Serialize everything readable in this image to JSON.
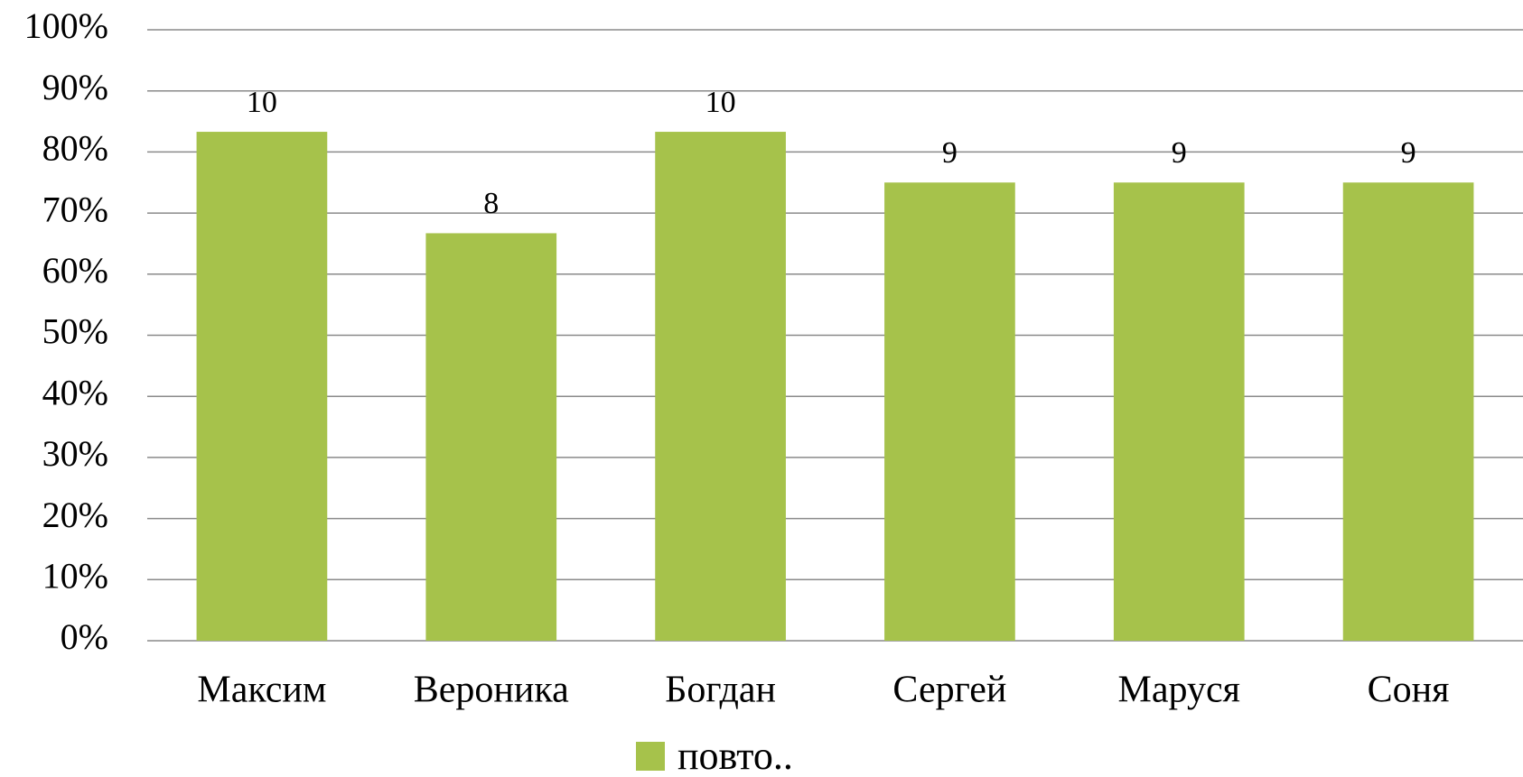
{
  "chart_data": {
    "type": "bar",
    "categories": [
      "Максим",
      "Вероника",
      "Богдан",
      "Сергей",
      "Маруся",
      "Соня"
    ],
    "series": [
      {
        "name": "повто..",
        "color": "#a6c24b",
        "values": [
          83.3,
          66.7,
          83.3,
          75,
          75,
          75
        ]
      }
    ],
    "annotations": [
      "10",
      "8",
      "10",
      "9",
      "9",
      "9"
    ],
    "ylim": [
      0,
      100
    ],
    "yticks": [
      {
        "value": 0,
        "label": "0%"
      },
      {
        "value": 10,
        "label": "10%"
      },
      {
        "value": 20,
        "label": "20%"
      },
      {
        "value": 30,
        "label": "30%"
      },
      {
        "value": 40,
        "label": "40%"
      },
      {
        "value": 50,
        "label": "50%"
      },
      {
        "value": 60,
        "label": "60%"
      },
      {
        "value": 70,
        "label": "70%"
      },
      {
        "value": 80,
        "label": "80%"
      },
      {
        "value": 90,
        "label": "90%"
      },
      {
        "value": 100,
        "label": "100%"
      }
    ],
    "grid": true,
    "legend": "bottom"
  }
}
